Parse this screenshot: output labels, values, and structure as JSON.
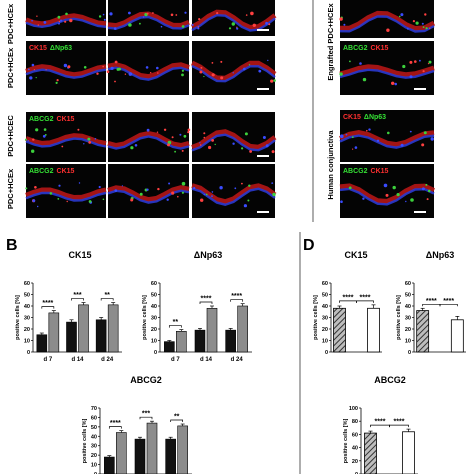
{
  "panel_letters": {
    "B": "B",
    "D": "D"
  },
  "micro_panels": {
    "left": [
      {
        "key": "r1",
        "side_label": "PDC+HCEx",
        "overlay": [
          {
            "t": "CK15",
            "c": "#ff3030"
          },
          {
            "t": "ΔNp63",
            "c": "#35e035"
          }
        ]
      },
      {
        "key": "r2",
        "side_label": "PDC+HCEx",
        "overlay": [
          {
            "t": "CK15",
            "c": "#ff3030"
          },
          {
            "t": "ΔNp63",
            "c": "#35e035"
          }
        ]
      },
      {
        "key": "r3",
        "side_label": "PDC+HCEC",
        "overlay": [
          {
            "t": "ABCG2",
            "c": "#35e035"
          },
          {
            "t": "CK15",
            "c": "#ff3030"
          }
        ]
      },
      {
        "key": "r4",
        "side_label": "PDC+HCEx",
        "overlay": [
          {
            "t": "ABCG2",
            "c": "#35e035"
          },
          {
            "t": "CK15",
            "c": "#ff3030"
          }
        ]
      }
    ],
    "right_labels": [
      "Engrafted PDC+HCEx",
      "Human conjunctiva"
    ],
    "right_overlays": [
      [
        {
          "t": "ABCG2",
          "c": "#35e035"
        },
        {
          "t": "CK15",
          "c": "#ff3030"
        }
      ],
      [
        {
          "t": "CK15",
          "c": "#ff3030"
        },
        {
          "t": "ΔNp63",
          "c": "#35e035"
        }
      ],
      [
        {
          "t": "ABCG2",
          "c": "#35e035"
        },
        {
          "t": "CK15",
          "c": "#ff3030"
        }
      ]
    ]
  },
  "colors": {
    "black_bar": "#111111",
    "grey_bar": "#8c8c8c",
    "white_bar": "#ffffff",
    "hatched_bar": "#555555"
  },
  "chart_data": [
    {
      "type": "bar",
      "title": "CK15",
      "ylabel": "positive cells [%]",
      "categories": [
        "d 7",
        "d 14",
        "d 24"
      ],
      "ylim": [
        0,
        60
      ],
      "yticks": [
        0,
        10,
        20,
        30,
        40,
        50,
        60
      ],
      "series": [
        {
          "values": [
            15,
            26,
            28
          ],
          "errors": [
            1.5,
            2,
            2
          ]
        },
        {
          "values": [
            34,
            41,
            41
          ],
          "errors": [
            2,
            2,
            2
          ]
        }
      ],
      "significance": [
        "****",
        "***",
        "**"
      ]
    },
    {
      "type": "bar",
      "title": "ΔNp63",
      "ylabel": "positive cells [%]",
      "categories": [
        "d 7",
        "d 14",
        "d 24"
      ],
      "ylim": [
        0,
        60
      ],
      "yticks": [
        0,
        10,
        20,
        30,
        40,
        50,
        60
      ],
      "series": [
        {
          "values": [
            9,
            19,
            19
          ],
          "errors": [
            1,
            1.5,
            1.5
          ]
        },
        {
          "values": [
            18,
            38,
            40
          ],
          "errors": [
            1.5,
            2,
            2
          ]
        }
      ],
      "significance": [
        "**",
        "****",
        "****"
      ]
    },
    {
      "type": "bar",
      "title": "ABCG2",
      "ylabel": "positive cells [%]",
      "categories": [
        "d 7",
        "d 14",
        "d 24"
      ],
      "ylim": [
        0,
        70
      ],
      "yticks": [
        0,
        10,
        20,
        30,
        40,
        50,
        60,
        70
      ],
      "series": [
        {
          "values": [
            18,
            37,
            37
          ],
          "errors": [
            1.5,
            2,
            2
          ]
        },
        {
          "values": [
            44,
            54,
            51
          ],
          "errors": [
            2,
            2,
            2
          ]
        }
      ],
      "significance": [
        "****",
        "***",
        "**"
      ]
    },
    {
      "type": "bar",
      "title": "CK15",
      "ylabel": "positive cells [%]",
      "categories": [
        "",
        "",
        ""
      ],
      "ylim": [
        0,
        60
      ],
      "yticks": [
        0,
        10,
        20,
        30,
        40,
        50,
        60
      ],
      "values": [
        38,
        0,
        38
      ],
      "errors": [
        2,
        0,
        3
      ],
      "styles": [
        "hatched",
        "white",
        "white"
      ],
      "significance": [
        "****",
        "****"
      ]
    },
    {
      "type": "bar",
      "title": "ΔNp63",
      "ylabel": "positive cells [%]",
      "categories": [
        "",
        "",
        ""
      ],
      "ylim": [
        0,
        60
      ],
      "yticks": [
        0,
        10,
        20,
        30,
        40,
        50,
        60
      ],
      "values": [
        36,
        0,
        28
      ],
      "errors": [
        2,
        0,
        3
      ],
      "styles": [
        "hatched",
        "white",
        "white"
      ],
      "significance": [
        "****",
        "****"
      ]
    },
    {
      "type": "bar",
      "title": "ABCG2",
      "ylabel": "positive cells [%]",
      "categories": [
        "",
        "",
        ""
      ],
      "ylim": [
        0,
        100
      ],
      "yticks": [
        0,
        20,
        40,
        60,
        80,
        100
      ],
      "values": [
        62,
        0,
        64
      ],
      "errors": [
        3,
        0,
        4
      ],
      "styles": [
        "hatched",
        "white",
        "white"
      ],
      "significance": [
        "****",
        "****"
      ]
    }
  ]
}
